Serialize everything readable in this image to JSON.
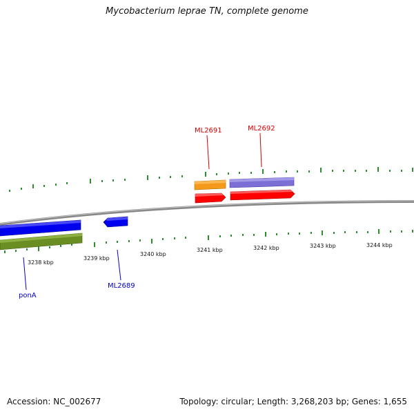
{
  "title": "Mycobacterium leprae TN, complete genome",
  "footer": {
    "accession": "Accession: NC_002677",
    "stats": "Topology: circular; Length: 3,268,203 bp; Genes: 1,655"
  },
  "colors": {
    "backbone": "#8a8a8a",
    "ticks": "#2e8b2e",
    "forward_cds": "#ff0000",
    "reverse_cds": "#0000ee",
    "orange_feature": "#f39a1a",
    "purple_feature": "#7b6fd6",
    "olive_feature": "#6b8e23",
    "label_red": "#d40000",
    "label_blue": "#0000cc"
  },
  "tick_labels": [
    "3238 kbp",
    "3239 kbp",
    "3240 kbp",
    "3241 kbp",
    "3242 kbp",
    "3243 kbp",
    "3244 kbp"
  ],
  "gene_labels": {
    "ml2691": "ML2691",
    "ml2692": "ML2692",
    "ml2689": "ML2689",
    "pona": "ponA"
  }
}
